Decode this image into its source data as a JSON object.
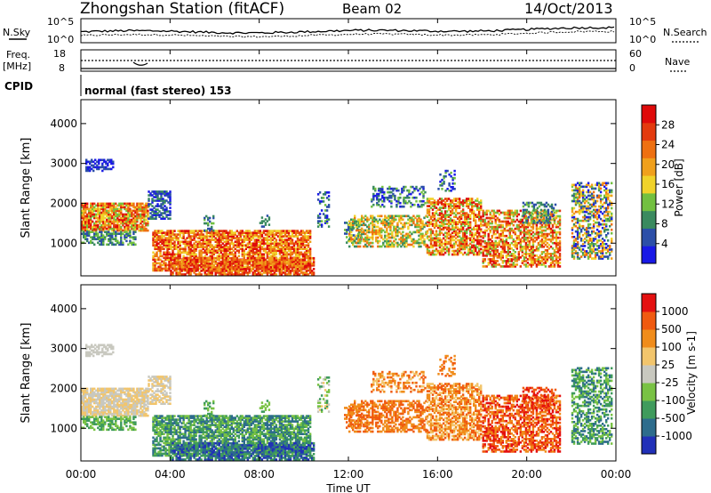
{
  "header": {
    "station_title": "Zhongshan Station (fitACF)",
    "beam": "Beam 02",
    "date": "14/Oct/2013"
  },
  "top_panels": {
    "nsky_label": "N.Sky",
    "nsearch_label": "N.Search",
    "freq_label": "Freq.",
    "freq_unit": "[MHz]",
    "nave_label": "Nave",
    "cpid_label": "CPID",
    "cpid_text": "normal (fast stereo) 153",
    "noise_ticks": [
      "10^5",
      "10^0"
    ],
    "freq_ticks": [
      "18",
      "8"
    ],
    "nave_ticks": [
      "60",
      "0"
    ]
  },
  "chart_data": [
    {
      "type": "heatmap",
      "name": "power",
      "ylabel": "Slant Range [km]",
      "ylim": [
        180,
        4600
      ],
      "yticks": [
        1000,
        2000,
        3000,
        4000
      ],
      "xlim": [
        0,
        24
      ],
      "xlabel": "Time UT",
      "xticks": [
        "00:00",
        "04:00",
        "08:00",
        "12:00",
        "16:00",
        "20:00",
        "00:00"
      ],
      "colorbar": {
        "label": "Power [dB]",
        "ticks": [
          "28",
          "24",
          "20",
          "16",
          "12",
          "8",
          "4"
        ],
        "colors": [
          "#1919e6",
          "#2c4fa8",
          "#3a8a5f",
          "#72c040",
          "#f0d22a",
          "#f0a01c",
          "#ee7011",
          "#e33a0e",
          "#df0a0a"
        ]
      }
    },
    {
      "type": "heatmap",
      "name": "velocity",
      "ylabel": "Slant Range [km]",
      "ylim": [
        180,
        4600
      ],
      "yticks": [
        1000,
        2000,
        3000,
        4000
      ],
      "xlim": [
        0,
        24
      ],
      "xlabel": "Time UT",
      "xticks": [
        "00:00",
        "04:00",
        "08:00",
        "12:00",
        "16:00",
        "20:00",
        "00:00"
      ],
      "colorbar": {
        "label": "Velocity [m s-1]",
        "ticks": [
          "1000",
          "500",
          "100",
          "25",
          "-25",
          "-100",
          "-500",
          "-1000"
        ],
        "colors": [
          "#2130b8",
          "#2d6c8c",
          "#3f9b5c",
          "#79c244",
          "#c8c8bf",
          "#f2c56c",
          "#f08c1b",
          "#f05a10",
          "#e41010"
        ]
      }
    }
  ]
}
